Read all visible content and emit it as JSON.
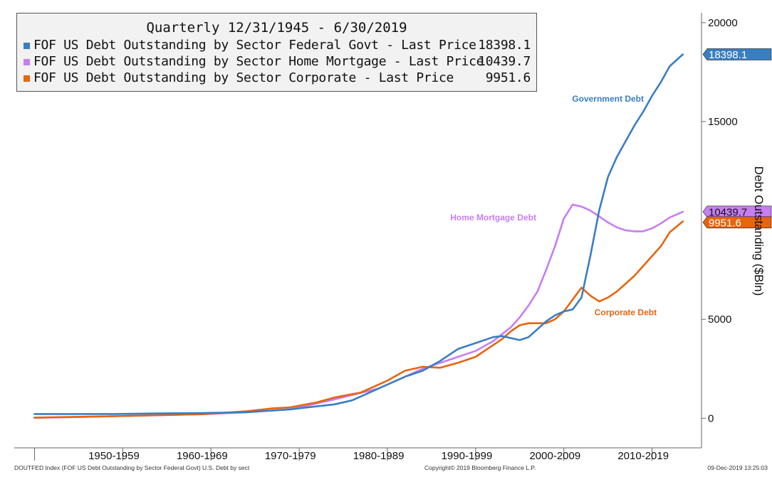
{
  "legend": {
    "title": "Quarterly 12/31/1945 - 6/30/2019",
    "entries": [
      {
        "name": "FOF US Debt Outstanding by Sector Federal Govt - Last Price",
        "value": "18398.1",
        "color": "#3a7ec2"
      },
      {
        "name": "FOF US Debt Outstanding by Sector Home Mortgage - Last Price",
        "value": "10439.7",
        "color": "#c77ef0"
      },
      {
        "name": "FOF US Debt Outstanding by Sector Corporate - Last Price",
        "value": "9951.6",
        "color": "#e8640e"
      }
    ]
  },
  "footer": {
    "left": "DOUTFED Index (FOF US Debt Outstanding by Sector Federal Govt) U.S. Debt by sect",
    "center": "Copyright© 2019 Bloomberg Finance L.P.",
    "right": "09-Dec-2019 13:25:03"
  },
  "chart_data": {
    "type": "line",
    "ylabel": "Debt Outstanding ($Bln)",
    "ylim": [
      -1500,
      20500
    ],
    "y_ticks": [
      "0",
      "5000",
      "15000",
      "20000"
    ],
    "x_range": [
      1943.7,
      2021.2
    ],
    "x_tick_labels": [
      "1950-1959",
      "1960-1969",
      "1970-1979",
      "1980-1989",
      "1990-1999",
      "2000-2009",
      "2010-2019"
    ],
    "x_label_positions": [
      1955,
      1965,
      1975,
      1985,
      1995,
      2005,
      2015
    ],
    "grid": false,
    "legend_position": "top-left",
    "series": [
      {
        "name": "Government Debt",
        "end_label": "18398.1",
        "color": "#3a7ec2",
        "x": [
          1945.99,
          1950,
          1955,
          1960,
          1965,
          1970,
          1975,
          1978,
          1980,
          1982,
          1984,
          1986,
          1988,
          1990,
          1992,
          1994,
          1996,
          1998,
          1999,
          2000,
          2001,
          2002,
          2003,
          2004,
          2005,
          2006,
          2007,
          2008,
          2009,
          2010,
          2011,
          2012,
          2013,
          2014,
          2015,
          2016,
          2017,
          2018,
          2019.49
        ],
        "values": [
          210,
          210,
          210,
          240,
          260,
          300,
          450,
          600,
          700,
          900,
          1300,
          1700,
          2100,
          2400,
          2900,
          3500,
          3800,
          4100,
          4150,
          4050,
          3950,
          4100,
          4500,
          4900,
          5200,
          5400,
          5500,
          6100,
          8200,
          10500,
          12200,
          13200,
          14000,
          14800,
          15500,
          16300,
          17000,
          17800,
          18398.1
        ]
      },
      {
        "name": "Home Mortgage Debt",
        "end_label": "10439.7",
        "color": "#c77ef0",
        "x": [
          1945.99,
          1950,
          1955,
          1960,
          1965,
          1970,
          1975,
          1980,
          1985,
          1988,
          1990,
          1992,
          1994,
          1996,
          1998,
          2000,
          2001,
          2002,
          2003,
          2004,
          2005,
          2006,
          2007,
          2008,
          2009,
          2010,
          2011,
          2012,
          2013,
          2014,
          2015,
          2016,
          2017,
          2018,
          2019.49
        ],
        "values": [
          20,
          50,
          100,
          150,
          200,
          300,
          450,
          950,
          1500,
          2100,
          2500,
          2800,
          3100,
          3400,
          3900,
          4600,
          5100,
          5700,
          6400,
          7500,
          8700,
          10100,
          10800,
          10700,
          10500,
          10200,
          9900,
          9650,
          9500,
          9450,
          9450,
          9600,
          9850,
          10150,
          10439.7
        ]
      },
      {
        "name": "Corporate Debt",
        "end_label": "9951.6",
        "color": "#e8640e",
        "x": [
          1945.99,
          1950,
          1955,
          1960,
          1965,
          1970,
          1973,
          1975,
          1978,
          1980,
          1983,
          1986,
          1988,
          1990,
          1992,
          1994,
          1996,
          1998,
          1999,
          2000,
          2001,
          2002,
          2003,
          2004,
          2005,
          2006,
          2007,
          2008,
          2009,
          2010,
          2011,
          2012,
          2013,
          2014,
          2015,
          2016,
          2017,
          2018,
          2019.49
        ],
        "values": [
          30,
          60,
          100,
          150,
          200,
          350,
          500,
          550,
          800,
          1050,
          1300,
          1900,
          2400,
          2600,
          2550,
          2800,
          3100,
          3700,
          4000,
          4400,
          4700,
          4800,
          4800,
          4800,
          5000,
          5400,
          6000,
          6600,
          6200,
          5900,
          6100,
          6400,
          6800,
          7200,
          7700,
          8200,
          8700,
          9400,
          9951.6
        ]
      }
    ],
    "annotations": [
      {
        "text": "Government Debt",
        "x": 2011.0,
        "y": 16000,
        "color": "#3a7ec2"
      },
      {
        "text": "Home Mortgage Debt",
        "x": 1998.0,
        "y": 10000,
        "color": "#c77ef0"
      },
      {
        "text": "Corporate Debt",
        "x": 2013.0,
        "y": 5200,
        "color": "#e8640e"
      }
    ]
  }
}
